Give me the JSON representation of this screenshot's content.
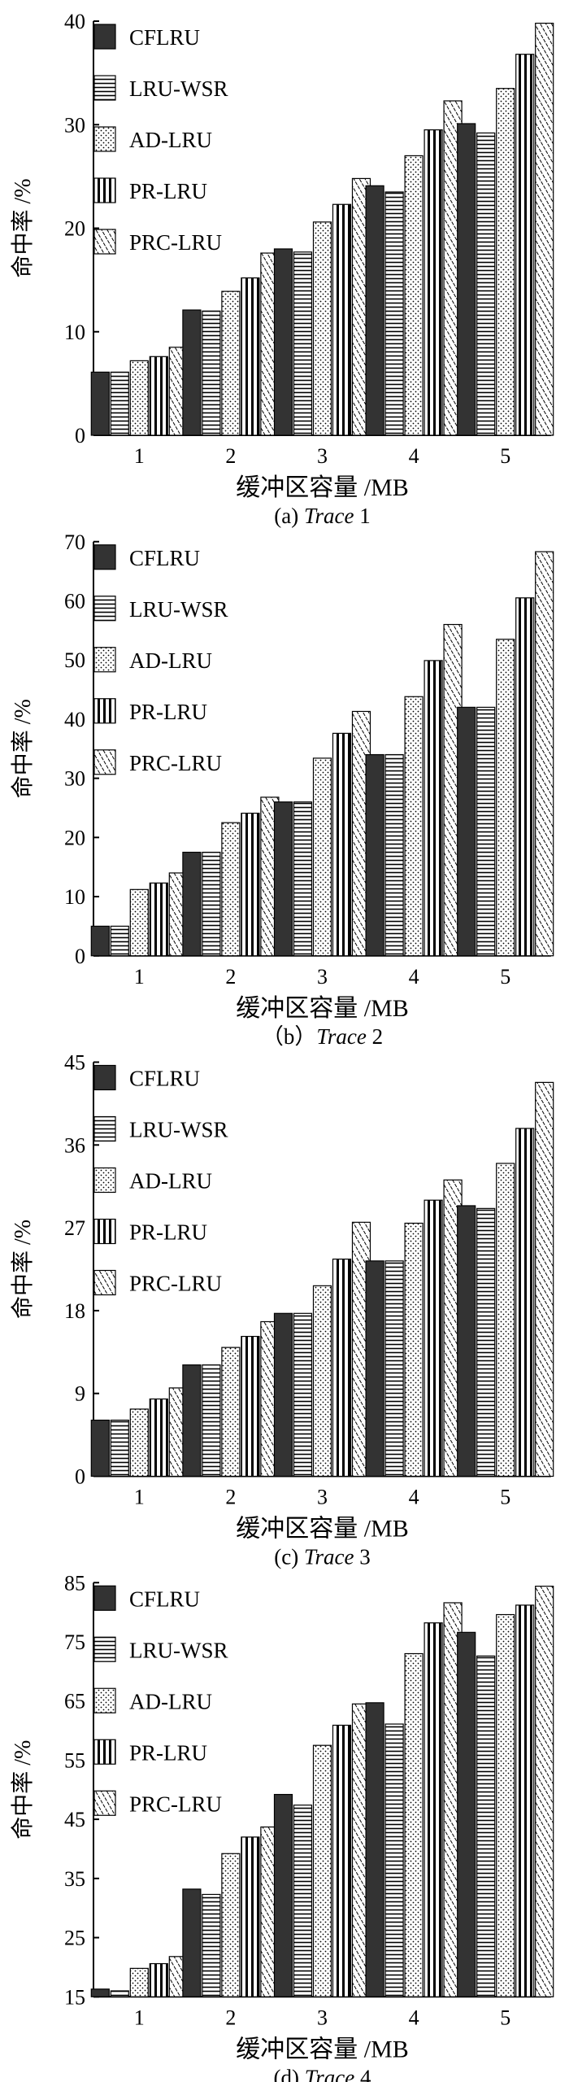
{
  "legend": [
    "CFLRU",
    "LRU-WSR",
    "AD-LRU",
    "PR-LRU",
    "PRC-LRU"
  ],
  "chart_data": [
    {
      "type": "bar",
      "categories": [
        "1",
        "2",
        "3",
        "4",
        "5"
      ],
      "xlabel": "缓冲区容量 /MB",
      "ylabel": "命中率 /%",
      "ylim": [
        0,
        40
      ],
      "yticks": [
        "0",
        "10",
        "20",
        "30",
        "40"
      ],
      "caption_prefix": "(a) ",
      "caption_trace": "Trace",
      "caption_suffix": " 1",
      "series": [
        {
          "name": "CFLRU",
          "values": [
            6.1,
            12.1,
            18.0,
            24.1,
            30.1
          ]
        },
        {
          "name": "LRU-WSR",
          "values": [
            6.1,
            12.0,
            17.7,
            23.5,
            29.2
          ]
        },
        {
          "name": "AD-LRU",
          "values": [
            7.2,
            13.9,
            20.6,
            27.0,
            33.5
          ]
        },
        {
          "name": "PR-LRU",
          "values": [
            7.6,
            15.2,
            22.3,
            29.5,
            36.8
          ]
        },
        {
          "name": "PRC-LRU",
          "values": [
            8.5,
            17.6,
            24.8,
            32.3,
            39.8
          ]
        }
      ]
    },
    {
      "type": "bar",
      "categories": [
        "1",
        "2",
        "3",
        "4",
        "5"
      ],
      "xlabel": "缓冲区容量 /MB",
      "ylabel": "命中率 /%",
      "ylim": [
        0,
        70
      ],
      "yticks": [
        "0",
        "10",
        "20",
        "30",
        "40",
        "50",
        "60",
        "70"
      ],
      "caption_prefix": "（b）",
      "caption_trace": "Trace",
      "caption_suffix": " 2",
      "series": [
        {
          "name": "CFLRU",
          "values": [
            5.0,
            17.5,
            26.0,
            34.0,
            42.0
          ]
        },
        {
          "name": "LRU-WSR",
          "values": [
            5.0,
            17.5,
            26.0,
            34.0,
            42.0
          ]
        },
        {
          "name": "AD-LRU",
          "values": [
            11.2,
            22.5,
            33.4,
            43.8,
            53.5
          ]
        },
        {
          "name": "PR-LRU",
          "values": [
            12.3,
            24.1,
            37.6,
            49.9,
            60.5
          ]
        },
        {
          "name": "PRC-LRU",
          "values": [
            14.0,
            26.8,
            41.3,
            56.0,
            68.3
          ]
        }
      ]
    },
    {
      "type": "bar",
      "categories": [
        "1",
        "2",
        "3",
        "4",
        "5"
      ],
      "xlabel": "缓冲区容量 /MB",
      "ylabel": "命中率 /%",
      "ylim": [
        0,
        45
      ],
      "yticks": [
        "0",
        "9",
        "18",
        "27",
        "36",
        "45"
      ],
      "caption_prefix": "(c) ",
      "caption_trace": "Trace",
      "caption_suffix": " 3",
      "series": [
        {
          "name": "CFLRU",
          "values": [
            6.1,
            12.1,
            17.7,
            23.4,
            29.4
          ]
        },
        {
          "name": "LRU-WSR",
          "values": [
            6.1,
            12.1,
            17.7,
            23.4,
            29.1
          ]
        },
        {
          "name": "AD-LRU",
          "values": [
            7.3,
            14.0,
            20.7,
            27.5,
            34.0
          ]
        },
        {
          "name": "PR-LRU",
          "values": [
            8.4,
            15.2,
            23.6,
            30.0,
            37.8
          ]
        },
        {
          "name": "PRC-LRU",
          "values": [
            9.6,
            16.8,
            27.6,
            32.2,
            42.8
          ]
        }
      ]
    },
    {
      "type": "bar",
      "categories": [
        "1",
        "2",
        "3",
        "4",
        "5"
      ],
      "xlabel": "缓冲区容量 /MB",
      "ylabel": "命中率 /%",
      "ylim": [
        15,
        85
      ],
      "yticks": [
        "15",
        "25",
        "35",
        "45",
        "55",
        "65",
        "75",
        "85"
      ],
      "caption_prefix": "(d) ",
      "caption_trace": "Trace",
      "caption_suffix": " 4",
      "series": [
        {
          "name": "CFLRU",
          "values": [
            16.3,
            33.2,
            49.2,
            64.7,
            76.6
          ]
        },
        {
          "name": "LRU-WSR",
          "values": [
            16.0,
            32.3,
            47.4,
            61.1,
            72.6
          ]
        },
        {
          "name": "AD-LRU",
          "values": [
            19.8,
            39.2,
            57.5,
            73.0,
            79.6
          ]
        },
        {
          "name": "PR-LRU",
          "values": [
            20.6,
            42.0,
            60.9,
            78.2,
            81.2
          ]
        },
        {
          "name": "PRC-LRU",
          "values": [
            21.8,
            43.7,
            64.5,
            81.6,
            84.4
          ]
        }
      ]
    }
  ]
}
